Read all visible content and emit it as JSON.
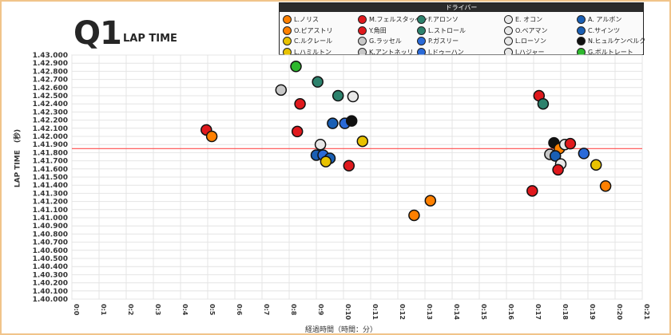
{
  "header": {
    "title": "Q1",
    "subtitle": "LAP TIME"
  },
  "legend": {
    "title": "ドライバー",
    "drivers": [
      {
        "name": "L.ノリス",
        "color": "#ff8000"
      },
      {
        "name": "M.フェルスタッペン",
        "color": "#e0191d"
      },
      {
        "name": "F.アロンソ",
        "color": "#2d826d"
      },
      {
        "name": "E. オコン",
        "color": "#e8e8e8"
      },
      {
        "name": "A. アルボン",
        "color": "#1a5fb4"
      },
      {
        "name": "O.ピアストリ",
        "color": "#ff8000"
      },
      {
        "name": "Y.角田",
        "color": "#e0191d"
      },
      {
        "name": "L.ストロール",
        "color": "#2d826d"
      },
      {
        "name": "O.ベアマン",
        "color": "#e8e8e8"
      },
      {
        "name": "C.サインツ",
        "color": "#1a5fb4"
      },
      {
        "name": "C.ルクレール",
        "color": "#e8c200"
      },
      {
        "name": "G.ラッセル",
        "color": "#c8c8c8"
      },
      {
        "name": "P.ガスリー",
        "color": "#2a6ad8"
      },
      {
        "name": "L.ローソン",
        "color": "#e8e8e8"
      },
      {
        "name": "N.ヒュルケンベルク",
        "color": "#111111"
      },
      {
        "name": "L.ハミルトン",
        "color": "#e8c200"
      },
      {
        "name": "K.アントネッリ",
        "color": "#c8c8c8"
      },
      {
        "name": "J.ドゥーハン",
        "color": "#2a6ad8"
      },
      {
        "name": "I.ハジャー",
        "color": "#e8e8e8"
      },
      {
        "name": "G.ボルトレート",
        "color": "#2eb82e"
      }
    ]
  },
  "chart_data": {
    "type": "scatter",
    "xlabel": "経過時間（時間：分）",
    "ylabel": "LAP TIME　(秒)",
    "xlim": [
      0,
      21
    ],
    "ylim": [
      1.4,
      1.43
    ],
    "x_ticks": [
      "0:0",
      "0:1",
      "0:2",
      "0:3",
      "0:4",
      "0:5",
      "0:6",
      "0:7",
      "0:8",
      "0:9",
      "0:10",
      "0:11",
      "0:12",
      "0:13",
      "0:14",
      "0:15",
      "0:16",
      "0:17",
      "0:18",
      "0:19",
      "0:20",
      "0:21"
    ],
    "y_ticks": [
      "1.40.000",
      "1.40.100",
      "1.40.200",
      "1.40.300",
      "1.40.400",
      "1.40.500",
      "1.40.600",
      "1.40.700",
      "1.40.800",
      "1.40.900",
      "1.41.000",
      "1.41.100",
      "1.41.200",
      "1.41.300",
      "1.41.400",
      "1.41.500",
      "1.41.600",
      "1.41.700",
      "1.41.800",
      "1.41.900",
      "1.42.000",
      "1.42.100",
      "1.42.200",
      "1.42.300",
      "1.42.400",
      "1.42.500",
      "1.42.600",
      "1.42.700",
      "1.42.800",
      "1.42.900",
      "1.43.000"
    ],
    "cutoff_line": 1.4185,
    "cutoff_color": "#ff4d4d",
    "grid": true,
    "points": [
      {
        "x": 4.95,
        "y": 1.4208,
        "color": "#e0191d"
      },
      {
        "x": 5.15,
        "y": 1.42,
        "color": "#ff8000"
      },
      {
        "x": 7.7,
        "y": 1.4257,
        "color": "#c8c8c8"
      },
      {
        "x": 8.25,
        "y": 1.4286,
        "color": "#2eb82e"
      },
      {
        "x": 8.4,
        "y": 1.424,
        "color": "#e0191d"
      },
      {
        "x": 8.3,
        "y": 1.4206,
        "color": "#e0191d"
      },
      {
        "x": 9.05,
        "y": 1.4267,
        "color": "#2d826d"
      },
      {
        "x": 9.8,
        "y": 1.425,
        "color": "#2d826d"
      },
      {
        "x": 10.35,
        "y": 1.4249,
        "color": "#e8e8e8"
      },
      {
        "x": 9.6,
        "y": 1.4216,
        "color": "#1a5fb4"
      },
      {
        "x": 10.05,
        "y": 1.4216,
        "color": "#2a6ad8"
      },
      {
        "x": 10.3,
        "y": 1.4219,
        "color": "#111111"
      },
      {
        "x": 10.7,
        "y": 1.4194,
        "color": "#e8c200"
      },
      {
        "x": 9.15,
        "y": 1.419,
        "color": "#e8e8e8"
      },
      {
        "x": 9.0,
        "y": 1.4177,
        "color": "#1a5fb4"
      },
      {
        "x": 9.25,
        "y": 1.4177,
        "color": "#2a6ad8"
      },
      {
        "x": 9.5,
        "y": 1.4173,
        "color": "#1a5fb4"
      },
      {
        "x": 9.35,
        "y": 1.4169,
        "color": "#e8c200"
      },
      {
        "x": 10.2,
        "y": 1.4164,
        "color": "#e0191d"
      },
      {
        "x": 12.6,
        "y": 1.4103,
        "color": "#ff8000"
      },
      {
        "x": 13.2,
        "y": 1.4121,
        "color": "#ff8000"
      },
      {
        "x": 17.2,
        "y": 1.425,
        "color": "#e0191d"
      },
      {
        "x": 17.35,
        "y": 1.424,
        "color": "#2d826d"
      },
      {
        "x": 17.75,
        "y": 1.4192,
        "color": "#111111"
      },
      {
        "x": 17.95,
        "y": 1.4185,
        "color": "#ff8000"
      },
      {
        "x": 18.15,
        "y": 1.419,
        "color": "#e8e8e8"
      },
      {
        "x": 18.35,
        "y": 1.4191,
        "color": "#e0191d"
      },
      {
        "x": 17.6,
        "y": 1.4178,
        "color": "#c8c8c8"
      },
      {
        "x": 17.8,
        "y": 1.4176,
        "color": "#1a5fb4"
      },
      {
        "x": 18.85,
        "y": 1.4179,
        "color": "#2a6ad8"
      },
      {
        "x": 18.0,
        "y": 1.4166,
        "color": "#e8e8e8"
      },
      {
        "x": 17.9,
        "y": 1.4159,
        "color": "#e0191d"
      },
      {
        "x": 16.95,
        "y": 1.4133,
        "color": "#e0191d"
      },
      {
        "x": 19.3,
        "y": 1.4165,
        "color": "#e8c200"
      },
      {
        "x": 19.65,
        "y": 1.4139,
        "color": "#ff8000"
      }
    ]
  }
}
